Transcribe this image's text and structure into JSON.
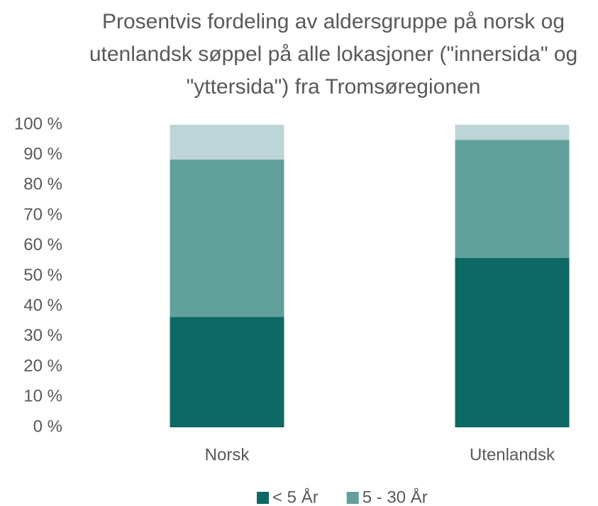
{
  "chart_data": {
    "type": "stacked_bar",
    "title": "Prosentvis fordeling av aldersgruppe på norsk og utenlandsk søppel på alle lokasjoner (\"innersida\" og \"yttersida\") fra Tromsøregionen",
    "categories": [
      "Norsk",
      "Utenlandsk"
    ],
    "series": [
      {
        "name": "< 5 År",
        "color": "#0e6864",
        "values": [
          36.5,
          56
        ]
      },
      {
        "name": "5 - 30 År",
        "color": "#62a19b",
        "values": [
          52,
          39
        ]
      },
      {
        "color": "#bdd5d7",
        "values": [
          11.5,
          5
        ]
      }
    ],
    "ylim": [
      0,
      100
    ],
    "yticks": [
      {
        "value": 0,
        "label": "0 %"
      },
      {
        "value": 10,
        "label": "10 %"
      },
      {
        "value": 20,
        "label": "20 %"
      },
      {
        "value": 30,
        "label": "30 %"
      },
      {
        "value": 40,
        "label": "40 %"
      },
      {
        "value": 50,
        "label": "50 %"
      },
      {
        "value": 60,
        "label": "60 %"
      },
      {
        "value": 70,
        "label": "70 %"
      },
      {
        "value": 80,
        "label": "80 %"
      },
      {
        "value": 90,
        "label": "90 %"
      },
      {
        "value": 100,
        "label": "100 %"
      }
    ],
    "grid": false,
    "legend": "bottom"
  }
}
